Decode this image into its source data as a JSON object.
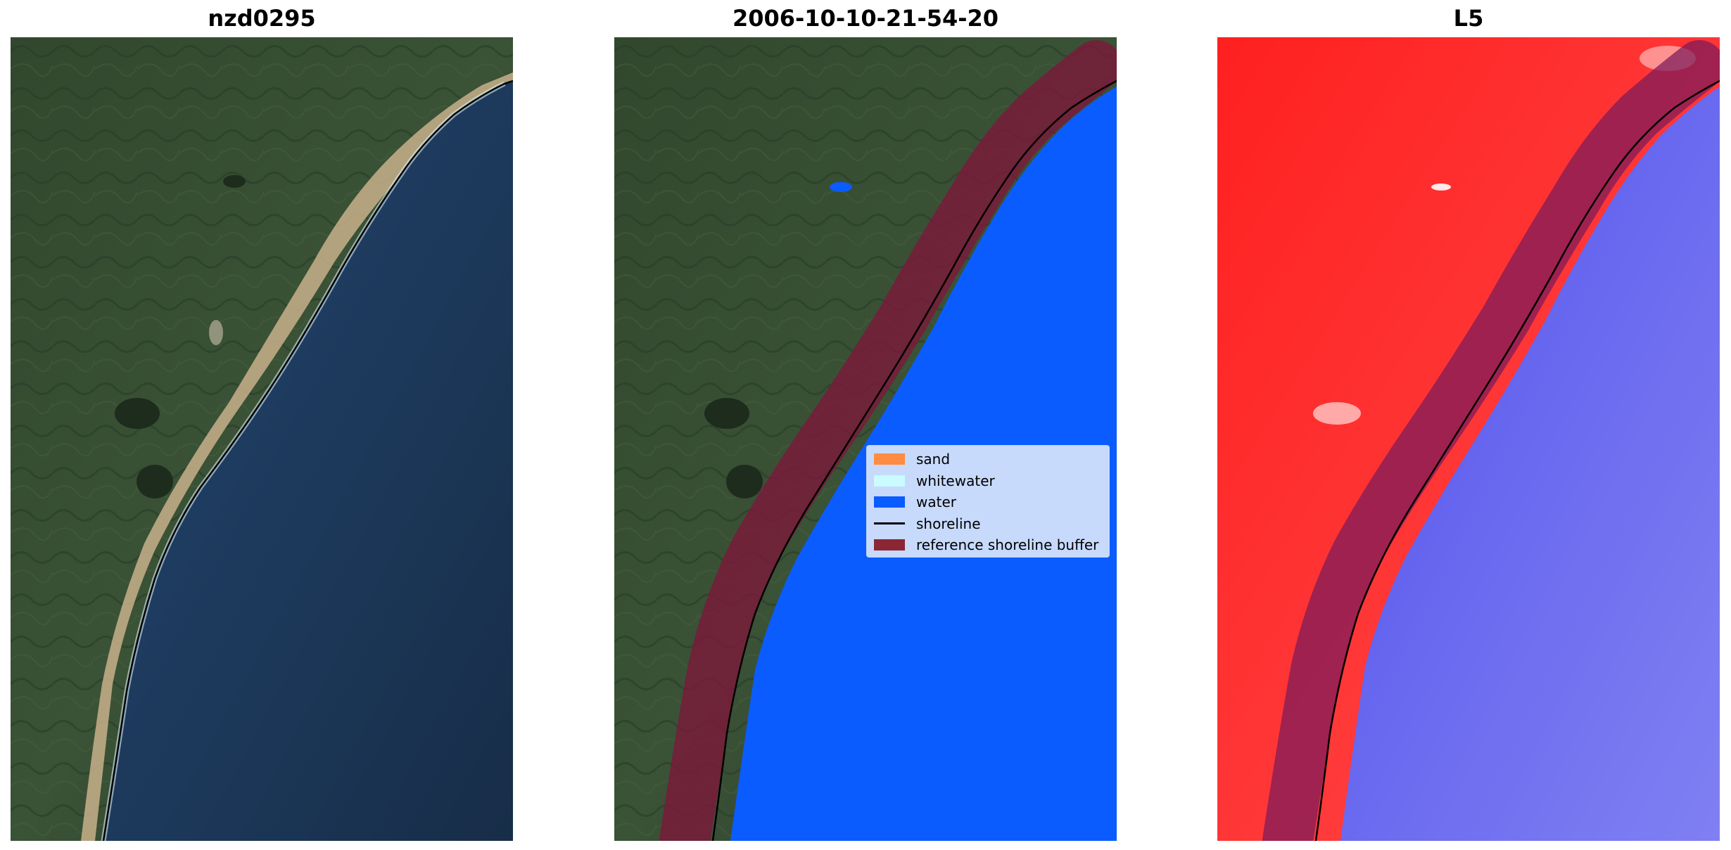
{
  "panels": [
    {
      "title": "nzd0295"
    },
    {
      "title": "2006-10-10-21-54-20"
    },
    {
      "title": "L5"
    }
  ],
  "legend": {
    "placement": "center-right of middle panel",
    "items": [
      {
        "label": "sand",
        "color": "#ff8c42",
        "kind": "patch"
      },
      {
        "label": "whitewater",
        "color": "#c9fbff",
        "kind": "patch"
      },
      {
        "label": "water",
        "color": "#0a5cff",
        "kind": "patch"
      },
      {
        "label": "shoreline",
        "color": "#000000",
        "kind": "line"
      },
      {
        "label": "reference shoreline buffer",
        "color": "#8b2635",
        "kind": "patch"
      }
    ]
  },
  "colors": {
    "land": "#2f4630",
    "ocean": "#1c3a5c",
    "sand": "#c8b089",
    "classified_water": "#0a5cff",
    "buffer": "#7a1a3a",
    "index_land": "#ff2a2a",
    "index_water": "#5a5ae6",
    "shoreline": "#000000"
  }
}
